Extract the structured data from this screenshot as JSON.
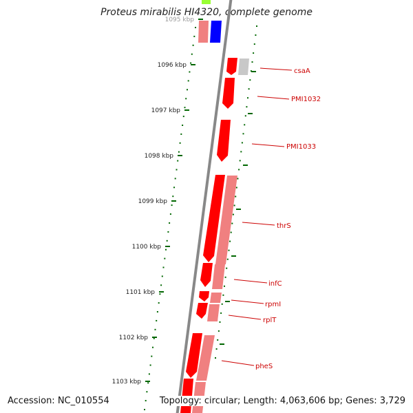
{
  "title": "Proteus mirabilis HI4320, complete genome",
  "accession_text": "Accession: NC_010554",
  "topology_text": "Topology: circular; Length: 4,063,606 bp; Genes: 3,729",
  "scale_labels": [
    "1095 kbp",
    "1096 kbp",
    "1097 kbp",
    "1098 kbp",
    "1099 kbp",
    "1100 kbp",
    "1101 kbp",
    "1102 kbp",
    "1103 kbp"
  ],
  "gene_labels": [
    "csaA",
    "PMI1032",
    "PMI1033",
    "thrS",
    "infC",
    "rpmI",
    "rplT",
    "pheS"
  ],
  "colors": {
    "gene_red": "#ff0000",
    "gene_pink": "#f08080",
    "gene_gray": "#c8c8c8",
    "gene_blue": "#0000ff",
    "gene_green": "#99ff33",
    "backbone": "#888888",
    "tick_green": "#006600",
    "label_red": "#cc0000"
  }
}
